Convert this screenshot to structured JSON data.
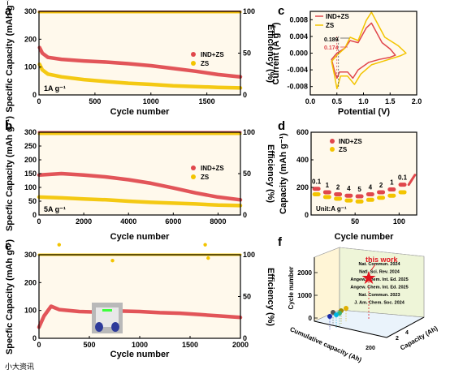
{
  "panels": {
    "a": {
      "label": "a",
      "ylabel": "Specific Capacity (mAh g⁻¹)",
      "y2label": "Efficiency (%)",
      "xlabel": "Cycle number",
      "note": "1A g⁻¹"
    },
    "b": {
      "label": "b",
      "ylabel": "Specfic Capacity (mAh g⁻¹)",
      "y2label": "Efficiency (%)",
      "xlabel": "Cycle number",
      "note": "5A g⁻¹"
    },
    "c": {
      "label": "c",
      "ylabel": "Current (A g⁻¹)",
      "xlabel": "Potential (V)",
      "ann1": "0.189",
      "ann2": "0.174"
    },
    "d": {
      "label": "d",
      "ylabel": "Capacity (mAh g⁻¹)",
      "xlabel": "Cycle number",
      "unit": "Unit:A g⁻¹"
    },
    "e": {
      "label": "e",
      "ylabel": "Specfic Capacity (mAh g⁻¹)",
      "y2label": "Efficiency (%)",
      "xlabel": "Cycle  number"
    },
    "f": {
      "label": "f",
      "zlabel": "Cycle number",
      "xlabel": "Cumulative capacity (Ah)",
      "ylabel": "Capacity (Ah)",
      "thiswork": "this work"
    }
  },
  "legend": {
    "ind": "IND+ZS",
    "zs": "ZS"
  },
  "colors": {
    "ind": "#e0474c",
    "zs": "#f3c400",
    "bg": "#fff9ec"
  },
  "watermark": "小大资讯",
  "chart_data": [
    {
      "id": "a",
      "type": "line",
      "x_range": [
        0,
        1800
      ],
      "y_range": [
        0,
        300
      ],
      "y2_range": [
        0,
        100
      ],
      "xticks": [
        0,
        500,
        1000,
        1500
      ],
      "yticks": [
        0,
        100,
        200,
        300
      ],
      "y2ticks": [
        0,
        50,
        100
      ],
      "series": [
        {
          "name": "IND+ZS",
          "axis": "left",
          "points": [
            [
              5,
              170
            ],
            [
              30,
              150
            ],
            [
              80,
              135
            ],
            [
              200,
              128
            ],
            [
              400,
              122
            ],
            [
              600,
              118
            ],
            [
              800,
              112
            ],
            [
              1000,
              105
            ],
            [
              1200,
              95
            ],
            [
              1400,
              85
            ],
            [
              1600,
              73
            ],
            [
              1800,
              65
            ]
          ]
        },
        {
          "name": "ZS",
          "axis": "left",
          "points": [
            [
              5,
              110
            ],
            [
              30,
              90
            ],
            [
              80,
              75
            ],
            [
              200,
              65
            ],
            [
              400,
              55
            ],
            [
              600,
              48
            ],
            [
              800,
              42
            ],
            [
              1000,
              38
            ],
            [
              1200,
              33
            ],
            [
              1400,
              30
            ],
            [
              1600,
              27
            ],
            [
              1800,
              25
            ]
          ]
        },
        {
          "name": "IND+ZS efficiency",
          "axis": "right",
          "points": [
            [
              0,
              99.5
            ],
            [
              1800,
              99.5
            ]
          ]
        },
        {
          "name": "ZS efficiency",
          "axis": "right",
          "points": [
            [
              0,
              99
            ],
            [
              1800,
              99
            ]
          ]
        }
      ]
    },
    {
      "id": "b",
      "type": "line",
      "x_range": [
        0,
        9000
      ],
      "y_range": [
        0,
        300
      ],
      "y2_range": [
        0,
        100
      ],
      "xticks": [
        0,
        2000,
        4000,
        6000,
        8000
      ],
      "yticks": [
        0,
        50,
        100,
        150,
        200,
        250,
        300
      ],
      "y2ticks": [
        0,
        50,
        100
      ],
      "series": [
        {
          "name": "IND+ZS",
          "axis": "left",
          "points": [
            [
              0,
              145
            ],
            [
              1000,
              150
            ],
            [
              2000,
              145
            ],
            [
              3000,
              138
            ],
            [
              4000,
              128
            ],
            [
              5000,
              115
            ],
            [
              6000,
              98
            ],
            [
              7000,
              80
            ],
            [
              8000,
              65
            ],
            [
              9000,
              55
            ]
          ]
        },
        {
          "name": "ZS",
          "axis": "left",
          "points": [
            [
              0,
              65
            ],
            [
              1000,
              62
            ],
            [
              2000,
              58
            ],
            [
              3000,
              55
            ],
            [
              4000,
              50
            ],
            [
              5000,
              46
            ],
            [
              6000,
              43
            ],
            [
              7000,
              40
            ],
            [
              8000,
              36
            ],
            [
              9000,
              34
            ]
          ]
        },
        {
          "name": "IND+ZS efficiency",
          "axis": "right",
          "points": [
            [
              0,
              100
            ],
            [
              9000,
              100
            ]
          ]
        },
        {
          "name": "ZS efficiency",
          "axis": "right",
          "points": [
            [
              0,
              98
            ],
            [
              9000,
              98
            ]
          ]
        }
      ]
    },
    {
      "id": "c",
      "type": "line",
      "x_range": [
        0,
        2.0
      ],
      "y_range": [
        -0.01,
        0.01
      ],
      "xticks": [
        0.0,
        0.5,
        1.0,
        1.5,
        2.0
      ],
      "yticks": [
        -0.008,
        -0.004,
        0.0,
        0.004,
        0.008
      ],
      "series": [
        {
          "name": "IND+ZS",
          "points": [
            [
              0.4,
              -0.0015
            ],
            [
              0.45,
              -0.004
            ],
            [
              0.5,
              -0.006
            ],
            [
              0.55,
              -0.0045
            ],
            [
              0.7,
              -0.0045
            ],
            [
              0.8,
              -0.006
            ],
            [
              0.9,
              -0.004
            ],
            [
              1.1,
              -0.0022
            ],
            [
              1.3,
              -0.0015
            ],
            [
              1.5,
              -0.001
            ],
            [
              1.6,
              -0.0005
            ],
            [
              1.5,
              0.001
            ],
            [
              1.35,
              0.0025
            ],
            [
              1.15,
              0.0072
            ],
            [
              1.05,
              0.006
            ],
            [
              0.9,
              0.0025
            ],
            [
              0.75,
              0.003
            ],
            [
              0.65,
              0.0012
            ],
            [
              0.5,
              0.0
            ],
            [
              0.4,
              -0.0015
            ]
          ]
        },
        {
          "name": "ZS",
          "points": [
            [
              0.4,
              -0.002
            ],
            [
              0.45,
              -0.005
            ],
            [
              0.5,
              -0.0085
            ],
            [
              0.57,
              -0.0055
            ],
            [
              0.7,
              -0.0055
            ],
            [
              0.83,
              -0.0075
            ],
            [
              0.95,
              -0.005
            ],
            [
              1.15,
              -0.0028
            ],
            [
              1.4,
              -0.0018
            ],
            [
              1.7,
              -0.0006
            ],
            [
              1.8,
              0.0
            ],
            [
              1.65,
              0.0018
            ],
            [
              1.4,
              0.0038
            ],
            [
              1.15,
              0.0098
            ],
            [
              1.05,
              0.0078
            ],
            [
              0.9,
              0.003
            ],
            [
              0.75,
              0.0038
            ],
            [
              0.65,
              0.0012
            ],
            [
              0.5,
              -0.0005
            ],
            [
              0.4,
              -0.002
            ]
          ]
        }
      ]
    },
    {
      "id": "d",
      "type": "scatter",
      "x_range": [
        0,
        120
      ],
      "y_range": [
        0,
        600
      ],
      "xticks": [
        50,
        100
      ],
      "yticks": [
        0,
        200,
        400,
        600
      ],
      "rate_labels": [
        "0.1",
        "1",
        "2",
        "4",
        "5",
        "4",
        "2",
        "1",
        "0.1"
      ],
      "series": [
        {
          "name": "IND+ZS",
          "values": [
            190,
            165,
            150,
            140,
            135,
            150,
            165,
            185,
            220
          ]
        },
        {
          "name": "ZS",
          "values": [
            150,
            130,
            118,
            105,
            98,
            110,
            125,
            140,
            165
          ]
        }
      ]
    },
    {
      "id": "e",
      "type": "line",
      "x_range": [
        0,
        2000
      ],
      "y_range": [
        0,
        300
      ],
      "y2_range": [
        0,
        100
      ],
      "xticks": [
        0,
        500,
        1000,
        1500,
        2000
      ],
      "yticks": [
        0,
        100,
        200,
        300
      ],
      "y2ticks": [
        0,
        50,
        100
      ],
      "series": [
        {
          "name": "IND+ZS",
          "axis": "left",
          "points": [
            [
              0,
              40
            ],
            [
              50,
              80
            ],
            [
              120,
              115
            ],
            [
              200,
              103
            ],
            [
              400,
              96
            ],
            [
              600,
              94
            ],
            [
              800,
              98
            ],
            [
              1000,
              96
            ],
            [
              1200,
              92
            ],
            [
              1400,
              90
            ],
            [
              1600,
              85
            ],
            [
              1800,
              80
            ],
            [
              2000,
              75
            ]
          ]
        },
        {
          "name": "ZS efficiency",
          "axis": "right",
          "points": [
            [
              0,
              100
            ],
            [
              2000,
              100
            ]
          ]
        }
      ]
    },
    {
      "id": "f",
      "type": "scatter",
      "zticks": [
        0,
        1000,
        2000
      ],
      "xticks": [
        200
      ],
      "yticks": [
        2,
        4
      ],
      "references": [
        "Nat. Commun. 2024",
        "Natl. Sci. Rev. 2024",
        "Angew. Chem. Int. Ed. 2025",
        "Angew. Chem. Int. Ed. 2025",
        "Nat. Commun. 2023",
        "J. Am. Chem. Soc. 2024"
      ],
      "ref_colors": [
        "#555555",
        "#a08a00",
        "#e0b000",
        "#3cb371",
        "#00b5e2",
        "#1a2aa8"
      ]
    }
  ]
}
